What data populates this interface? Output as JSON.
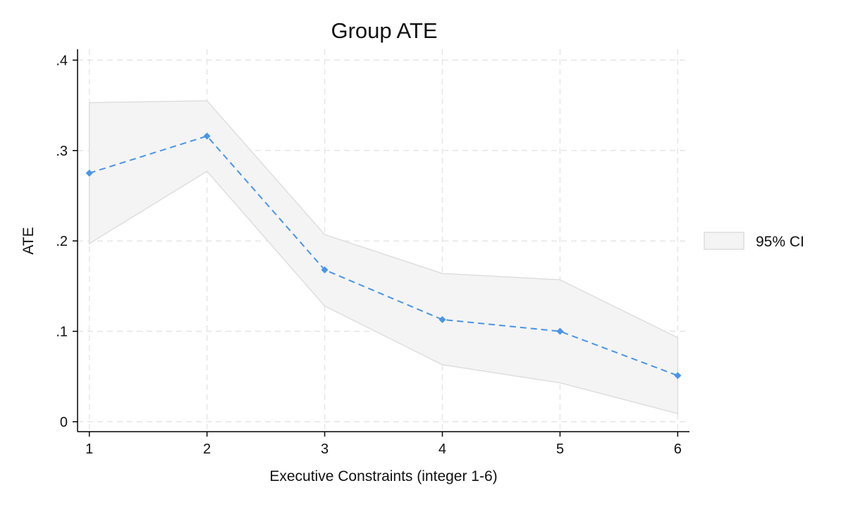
{
  "chart_data": {
    "type": "line",
    "title": "Group ATE",
    "xlabel": "Executive Constraints (integer 1-6)",
    "ylabel": "ATE",
    "x": [
      1,
      2,
      3,
      4,
      5,
      6
    ],
    "xticks": [
      "1",
      "2",
      "3",
      "4",
      "5",
      "6"
    ],
    "xlim": [
      0.9,
      6.1
    ],
    "yticks": [
      0,
      0.1,
      0.2,
      0.3,
      0.4
    ],
    "ytick_labels": [
      "0",
      ".1",
      ".2",
      ".3",
      ".4"
    ],
    "ylim": [
      -0.011,
      0.412
    ],
    "grid": true,
    "legend_position": "right",
    "series": [
      {
        "values": [
          0.275,
          0.316,
          0.168,
          0.113,
          0.1,
          0.051
        ],
        "style": "dashed",
        "marker": "diamond",
        "color": "#4a94e8"
      }
    ],
    "ci_band": {
      "name": "95% CI",
      "lower": [
        0.197,
        0.277,
        0.128,
        0.063,
        0.043,
        0.009
      ],
      "upper": [
        0.353,
        0.355,
        0.207,
        0.164,
        0.157,
        0.093
      ],
      "fill": "#f4f4f4",
      "stroke": "#dedede"
    },
    "colors": {
      "grid": "#e6e6e6",
      "axis": "#000000"
    }
  }
}
